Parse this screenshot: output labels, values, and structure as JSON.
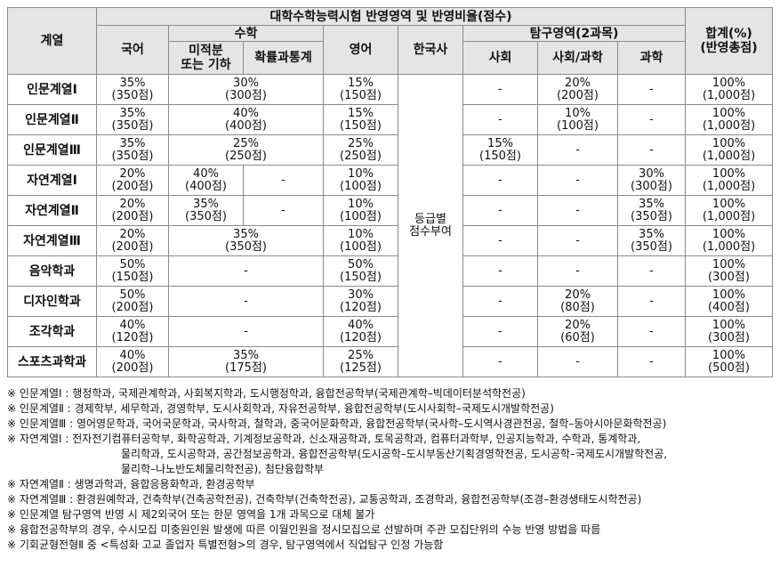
{
  "table": {
    "header": {
      "category": "계열",
      "group_title": "대학수학능력시험 반영영역 및 반영비율(점수)",
      "korean": "국어",
      "math": "수학",
      "math_calc_geo": [
        "미적분",
        "또는 기하"
      ],
      "math_prob_stat": "확률과통계",
      "english": "영어",
      "history": "한국사",
      "inquiry": "탐구영역(2과목)",
      "social": "사회",
      "social_science": "사회/과학",
      "science": "과학",
      "total": [
        "합계(%)",
        "(반영총점)"
      ]
    },
    "history_value": [
      "등급별",
      "점수부여"
    ],
    "rows": [
      {
        "name": "인문계열Ⅰ",
        "korean": [
          "35%",
          "(350점)"
        ],
        "math_combined": [
          "30%",
          "(300점)"
        ],
        "english": [
          "15%",
          "(150점)"
        ],
        "social": "-",
        "social_science": [
          "20%",
          "(200점)"
        ],
        "science": "-",
        "total": [
          "100%",
          "(1,000점)"
        ]
      },
      {
        "name": "인문계열Ⅱ",
        "korean": [
          "35%",
          "(350점)"
        ],
        "math_combined": [
          "40%",
          "(400점)"
        ],
        "english": [
          "15%",
          "(150점)"
        ],
        "social": "-",
        "social_science": [
          "10%",
          "(100점)"
        ],
        "science": "-",
        "total": [
          "100%",
          "(1,000점)"
        ]
      },
      {
        "name": "인문계열Ⅲ",
        "korean": [
          "35%",
          "(350점)"
        ],
        "math_combined": [
          "25%",
          "(250점)"
        ],
        "english": [
          "25%",
          "(250점)"
        ],
        "social": [
          "15%",
          "(150점)"
        ],
        "social_science": "-",
        "science": "-",
        "total": [
          "100%",
          "(1,000점)"
        ]
      },
      {
        "name": "자연계열Ⅰ",
        "korean": [
          "20%",
          "(200점)"
        ],
        "math_calc": [
          "40%",
          "(400점)"
        ],
        "math_stat": "-",
        "english": [
          "10%",
          "(100점)"
        ],
        "social": "-",
        "social_science": "-",
        "science": [
          "30%",
          "(300점)"
        ],
        "total": [
          "100%",
          "(1,000점)"
        ]
      },
      {
        "name": "자연계열Ⅱ",
        "korean": [
          "20%",
          "(200점)"
        ],
        "math_calc": [
          "35%",
          "(350점)"
        ],
        "math_stat": "-",
        "english": [
          "10%",
          "(100점)"
        ],
        "social": "-",
        "social_science": "-",
        "science": [
          "35%",
          "(350점)"
        ],
        "total": [
          "100%",
          "(1,000점)"
        ]
      },
      {
        "name": "자연계열Ⅲ",
        "korean": [
          "20%",
          "(200점)"
        ],
        "math_combined": [
          "35%",
          "(350점)"
        ],
        "english": [
          "10%",
          "(100점)"
        ],
        "social": "-",
        "social_science": "-",
        "science": [
          "35%",
          "(350점)"
        ],
        "total": [
          "100%",
          "(1,000점)"
        ]
      },
      {
        "name": "음악학과",
        "korean": [
          "50%",
          "(150점)"
        ],
        "math_combined": "-",
        "english": [
          "50%",
          "(150점)"
        ],
        "social": "-",
        "social_science": "-",
        "science": "-",
        "total": [
          "100%",
          "(300점)"
        ]
      },
      {
        "name": "디자인학과",
        "korean": [
          "50%",
          "(200점)"
        ],
        "math_combined": "-",
        "english": [
          "30%",
          "(120점)"
        ],
        "social": "-",
        "social_science": [
          "20%",
          "(80점)"
        ],
        "science": "-",
        "total": [
          "100%",
          "(400점)"
        ]
      },
      {
        "name": "조각학과",
        "korean": [
          "40%",
          "(120점)"
        ],
        "math_combined": "-",
        "english": [
          "40%",
          "(120점)"
        ],
        "social": "-",
        "social_science": [
          "20%",
          "(60점)"
        ],
        "science": "-",
        "total": [
          "100%",
          "(300점)"
        ]
      },
      {
        "name": "스포츠과학과",
        "korean": [
          "40%",
          "(200점)"
        ],
        "math_combined": [
          "35%",
          "(175점)"
        ],
        "english": [
          "25%",
          "(125점)"
        ],
        "social": "-",
        "social_science": "-",
        "science": "-",
        "total": [
          "100%",
          "(500점)"
        ]
      }
    ]
  },
  "notes": [
    "※ 인문계열Ⅰ : 행정학과, 국제관계학과, 사회복지학과, 도시행정학과, 융합전공학부(국제관계학–빅데이터분석학전공)",
    "※ 인문계열Ⅱ : 경제학부, 세무학과, 경영학부, 도시사회학과, 자유전공학부, 융합전공학부(도시사회학–국제도시개발학전공)",
    "※ 인문계열Ⅲ : 영어영문학과, 국어국문학과, 국사학과, 철학과, 중국어문화학과, 융합전공학부(국사학–도시역사경관전공, 철학–동아시아문화학전공)",
    "※ 자연계열Ⅰ : 전자전기컴퓨터공학부, 화학공학과, 기계정보공학과, 신소재공학과, 토목공학과, 컴퓨터과학부, 인공지능학과, 수학과, 통계학과,",
    "물리학과, 도시공학과, 공간정보공학과, 융합전공학부(도시공학–도시부동산기획경영학전공, 도시공학–국제도시개발학전공,",
    "물리학–나노반도체물리학전공), 첨단융합학부",
    "※ 자연계열Ⅱ : 생명과학과, 융합응용화학과, 환경공학부",
    "※ 자연계열Ⅲ : 환경원예학과, 건축학부(건축공학전공), 건축학부(건축학전공), 교통공학과, 조경학과, 융합전공학부(조경–환경생태도시학전공)",
    "※ 인문계열 탐구영역 반영 시 제2외국어 또는 한문 영역을 1개 과목으로 대체 불가",
    "※ 융합전공학부의 경우, 수시모집 미충원인원 발생에 따른 이월인원을 정시모집으로 선발하며 주관 모집단위의 수능 반영 방법을 따름",
    "※ 기회균형전형Ⅱ 중 <특성화 고교 졸업자 특별전형>의 경우, 탐구영역에서 직업탐구 인정 가능함"
  ]
}
